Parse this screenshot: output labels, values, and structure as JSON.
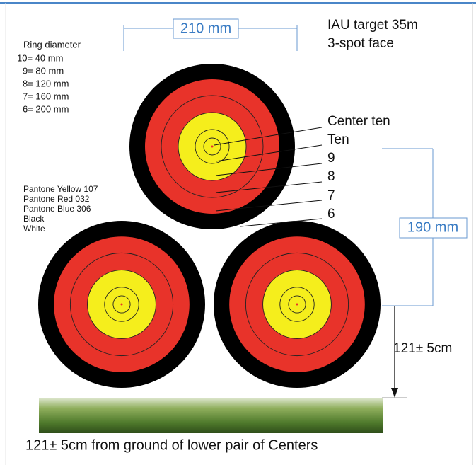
{
  "title": [
    "IAU target 35m",
    "3-spot face"
  ],
  "dimensions": {
    "width": "210 mm",
    "height": "190 mm",
    "drop": "121± 5cm"
  },
  "ring_diameter": {
    "heading": "Ring diameter",
    "rows": [
      "10=   40 mm",
      "9=   80 mm",
      "8= 120 mm",
      "7= 160 mm",
      "6= 200 mm"
    ]
  },
  "colors": [
    "Pantone Yellow 107",
    "Pantone Red 032",
    "Pantone Blue 306",
    "Black",
    "White"
  ],
  "ring_labels": [
    "Center ten",
    "Ten",
    "9",
    "8",
    "7",
    "6"
  ],
  "caption": "121± 5cm from ground of lower pair of Centers"
}
